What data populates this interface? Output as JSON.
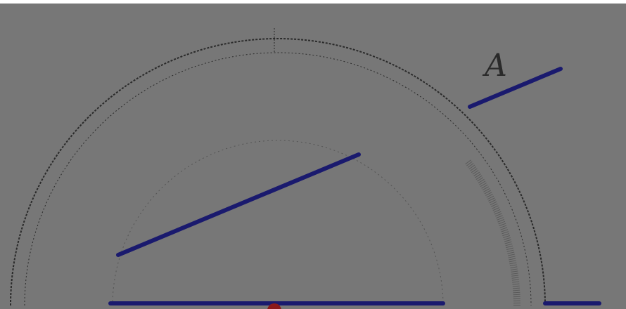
{
  "figure": {
    "point_label": "A"
  }
}
